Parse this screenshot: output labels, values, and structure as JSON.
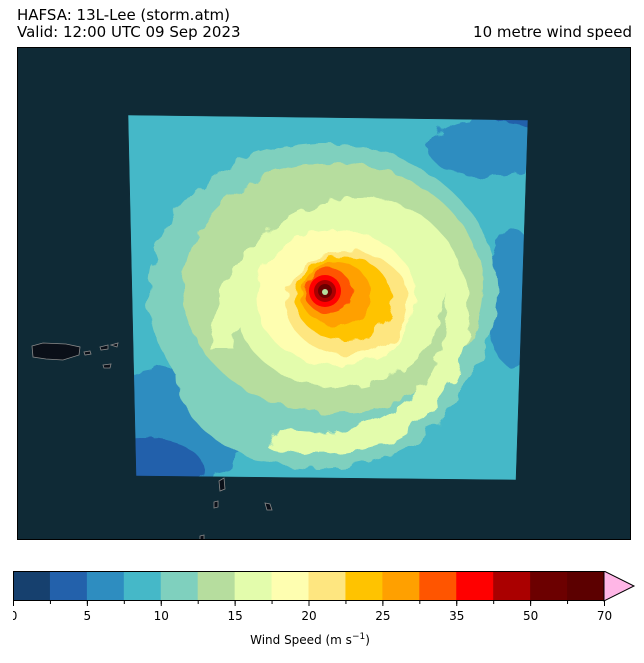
{
  "header": {
    "title_line1": "HAFSA: 13L-Lee (storm.atm)",
    "title_line2": "Valid: 12:00 UTC 09 Sep 2023",
    "field_name": "10 metre wind speed"
  },
  "map": {
    "background_color": "#0f2a36",
    "land_color": "#0a0f18",
    "coast_color": "#8a8a8a"
  },
  "colorbar": {
    "label_prefix": "Wind Speed (m s",
    "label_exp": "−1",
    "label_suffix": ")",
    "boundaries": [
      0,
      2.5,
      5,
      7.5,
      10,
      12.5,
      15,
      17.5,
      20,
      22.5,
      25,
      30,
      35,
      40,
      50,
      60,
      70
    ],
    "colors": [
      "#16406e",
      "#2361ab",
      "#2e8dc0",
      "#45b8c8",
      "#7fd0be",
      "#b6dd9e",
      "#e3fcac",
      "#fefeb0",
      "#fee680",
      "#ffc300",
      "#ffa000",
      "#ff5500",
      "#ff0000",
      "#aa0000",
      "#6c0000",
      "#5c0000"
    ],
    "extend_color": "#ffb6e6",
    "tick_values": [
      0,
      5,
      10,
      15,
      20,
      25,
      35,
      50,
      70
    ],
    "tick_labels": [
      "0",
      "5",
      "10",
      "15",
      "20",
      "25",
      "35",
      "50",
      "70"
    ]
  }
}
